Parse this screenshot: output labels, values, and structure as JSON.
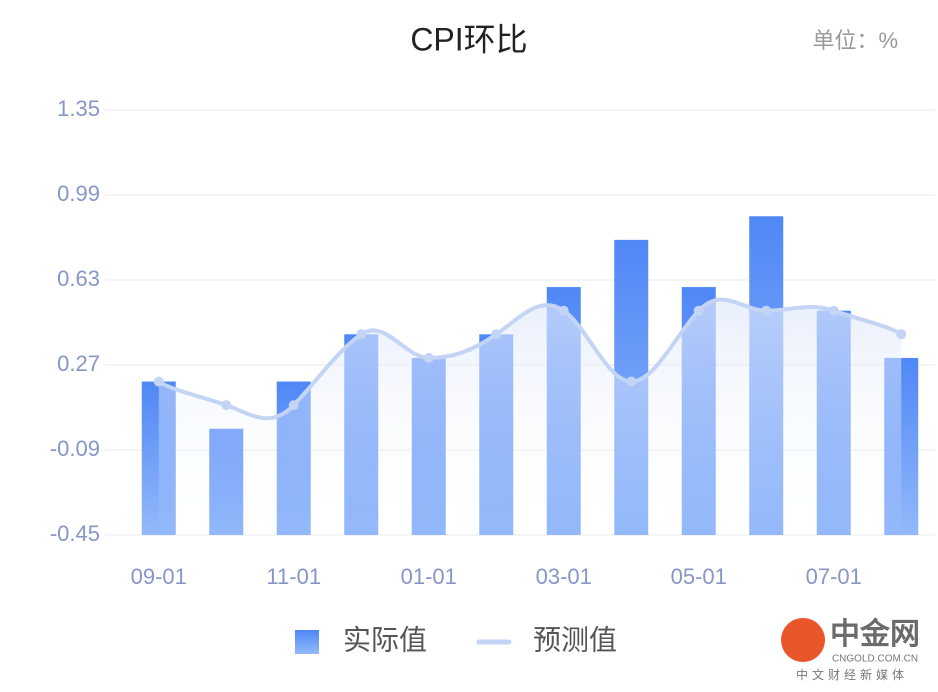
{
  "chart_data": {
    "type": "bar-line",
    "title": "CPI环比",
    "unit_label": "单位：%",
    "categories": [
      "09-01",
      null,
      "11-01",
      null,
      "01-01",
      null,
      "03-01",
      null,
      "05-01",
      null,
      "07-01",
      null
    ],
    "series": [
      {
        "name": "实际值",
        "type": "bar",
        "color": "#4f87f6",
        "values": [
          0.2,
          0.0,
          0.2,
          0.4,
          0.3,
          0.4,
          0.6,
          0.8,
          0.6,
          0.9,
          0.5,
          0.3
        ]
      },
      {
        "name": "预测值",
        "type": "line",
        "color": "#c3d4f4",
        "values": [
          0.2,
          0.1,
          0.1,
          0.4,
          0.3,
          0.4,
          0.5,
          0.2,
          0.5,
          0.5,
          0.5,
          0.4
        ]
      }
    ],
    "ylim": [
      -0.45,
      1.35
    ],
    "yticks": [
      -0.45,
      -0.09,
      0.27,
      0.63,
      0.99,
      1.35
    ],
    "grid": true,
    "legend": "bottom",
    "watermark": {
      "name": "中金网",
      "site": "CNGOLD.COM.CN",
      "slogan": "中文财经新媒体"
    }
  }
}
